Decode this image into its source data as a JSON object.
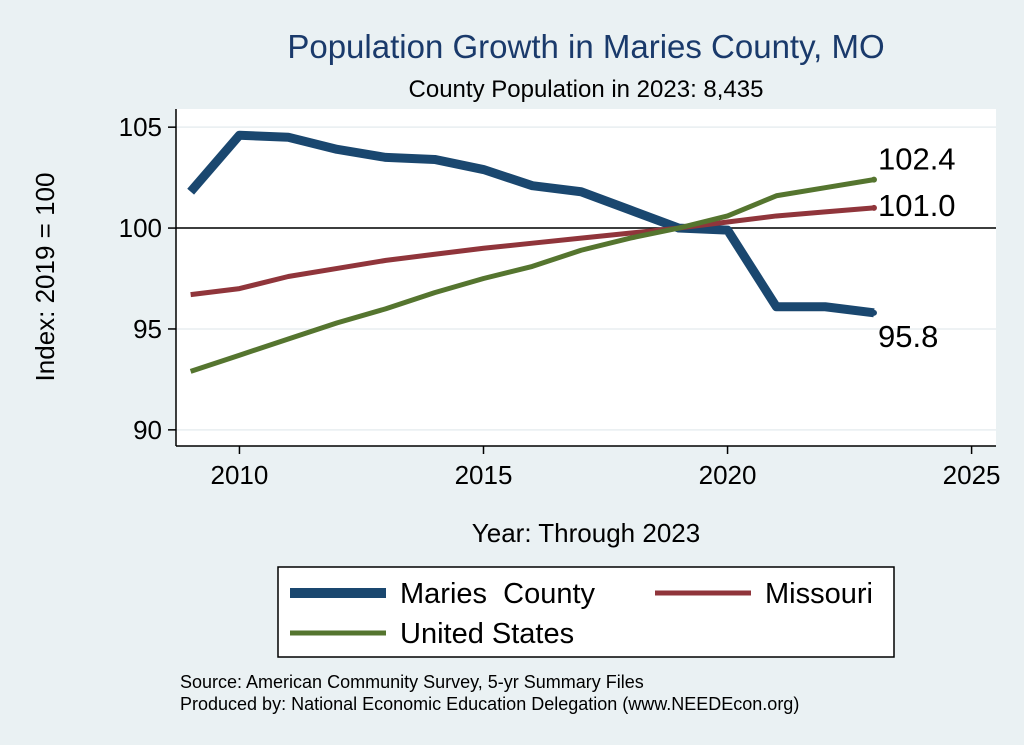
{
  "chart_data": {
    "type": "line",
    "title": "Population Growth in Maries County, MO",
    "subtitle": "County Population in 2023: 8,435",
    "xlabel": "Year: Through 2023",
    "ylabel": "Index: 2019 = 100",
    "xlim": [
      2008.7,
      2025.5
    ],
    "ylim": [
      89.2,
      105.9
    ],
    "xticks": [
      2010,
      2015,
      2020,
      2025
    ],
    "yticks": [
      90,
      95,
      100,
      105
    ],
    "reference_line": 100,
    "series": [
      {
        "name": "Maries  County",
        "color": "#1a476f",
        "width": 9,
        "x": [
          2009,
          2010,
          2011,
          2012,
          2013,
          2014,
          2015,
          2016,
          2017,
          2018,
          2019,
          2020,
          2021,
          2022,
          2023
        ],
        "values": [
          101.8,
          104.6,
          104.5,
          103.9,
          103.5,
          103.4,
          102.9,
          102.1,
          101.8,
          100.9,
          100.0,
          99.9,
          96.1,
          96.1,
          95.8
        ],
        "end_label": "95.8"
      },
      {
        "name": "Missouri",
        "color": "#90353b",
        "width": 5,
        "x": [
          2009,
          2010,
          2011,
          2012,
          2013,
          2014,
          2015,
          2016,
          2017,
          2018,
          2019,
          2020,
          2021,
          2022,
          2023
        ],
        "values": [
          96.7,
          97.0,
          97.6,
          98.0,
          98.4,
          98.7,
          99.0,
          99.25,
          99.5,
          99.75,
          100.0,
          100.3,
          100.6,
          100.8,
          101.0
        ],
        "end_label": "101.0"
      },
      {
        "name": "United States",
        "color": "#55752f",
        "width": 5,
        "x": [
          2009,
          2010,
          2011,
          2012,
          2013,
          2014,
          2015,
          2016,
          2017,
          2018,
          2019,
          2020,
          2021,
          2022,
          2023
        ],
        "values": [
          92.9,
          93.7,
          94.5,
          95.3,
          96.0,
          96.8,
          97.5,
          98.1,
          98.9,
          99.5,
          100.0,
          100.6,
          101.6,
          102.0,
          102.4
        ],
        "end_label": "102.4"
      }
    ],
    "legend": [
      "Maries  County",
      "Missouri",
      "United States"
    ],
    "source_lines": [
      "Source: American Community Survey, 5-yr Summary Files",
      "Produced by: National Economic Education Delegation (www.NEEDEcon.org)"
    ]
  }
}
